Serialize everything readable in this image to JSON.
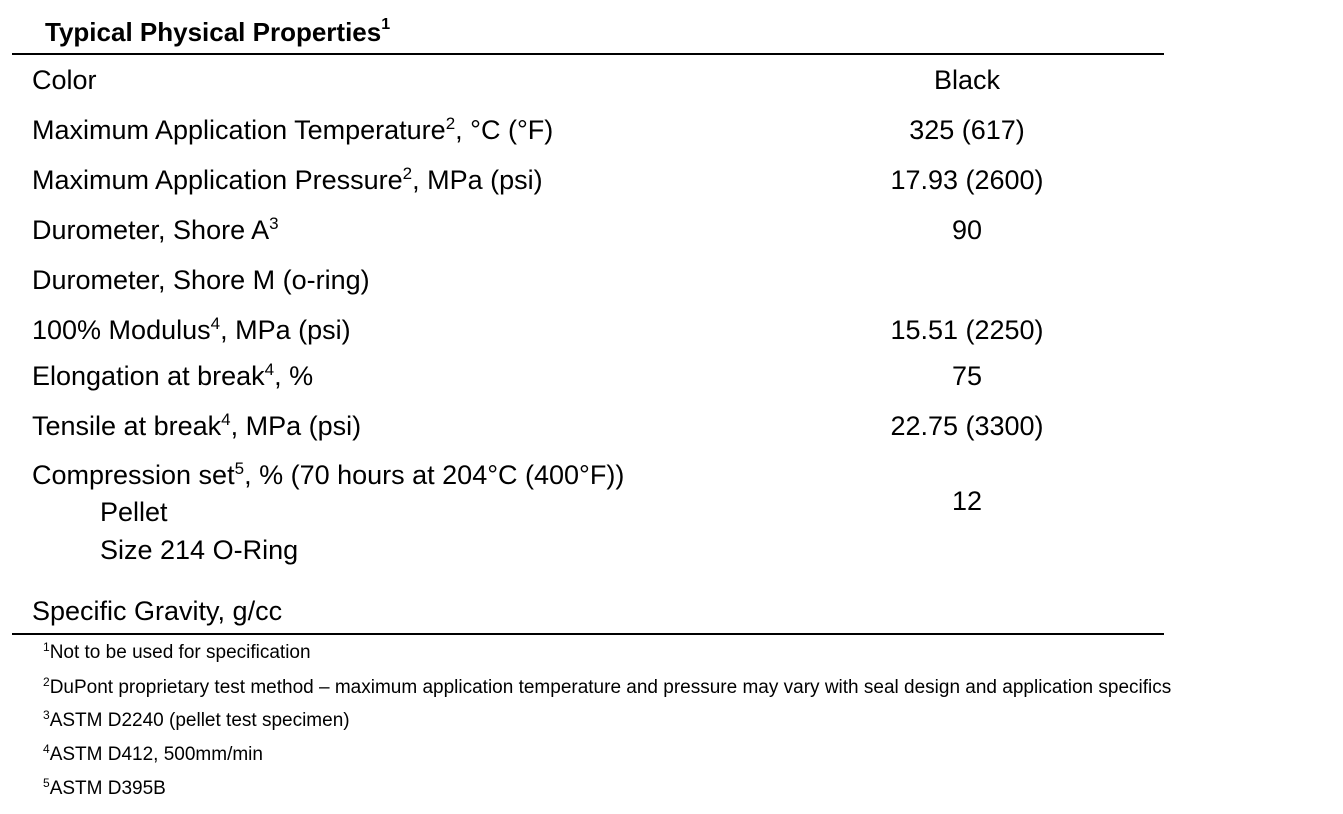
{
  "title": {
    "text": "Typical Physical Properties",
    "sup": "1"
  },
  "rows": [
    {
      "label": {
        "text": "Color"
      },
      "value": "Black"
    },
    {
      "label": {
        "text": "Maximum Application Temperature",
        "sup": "2",
        "after": ", °C (°F)"
      },
      "value": "325 (617)"
    },
    {
      "label": {
        "text": "Maximum Application Pressure",
        "sup": "2",
        "after": ", MPa (psi)"
      },
      "value": "17.93 (2600)"
    },
    {
      "label": {
        "text": "Durometer, Shore A",
        "sup": "3"
      },
      "value": "90"
    },
    {
      "label": {
        "text": "Durometer, Shore M (o-ring)"
      }
    },
    {
      "label": {
        "text": "100% Modulus",
        "sup": "4",
        "after": ", MPa (psi)"
      },
      "value": "15.51 (2250)"
    },
    {
      "label": {
        "text": "Elongation at break",
        "sup": "4",
        "after": ", %"
      },
      "value": "75"
    },
    {
      "label": {
        "text": "Tensile at break",
        "sup": "4",
        "after": ", MPa (psi)"
      },
      "value": "22.75 (3300)"
    },
    {
      "label": {
        "text": "Compression set",
        "sup": "5",
        "after": ", % (70 hours at 204°C (400°F))"
      },
      "subitems": [
        "Pellet",
        "Size 214 O-Ring"
      ],
      "value": "12"
    },
    {
      "label": {
        "text": "Specific Gravity, g/cc"
      }
    }
  ],
  "footnotes": [
    {
      "number": "1",
      "text": "Not to be used for specification"
    },
    {
      "number": "2",
      "text": "DuPont proprietary test method – maximum application temperature and pressure may vary with seal design and application specifics"
    },
    {
      "number": "3",
      "text": "ASTM D2240 (pellet test specimen)"
    },
    {
      "number": "4",
      "text": "ASTM D412, 500mm/min"
    },
    {
      "number": "5",
      "text": "ASTM D395B"
    }
  ]
}
